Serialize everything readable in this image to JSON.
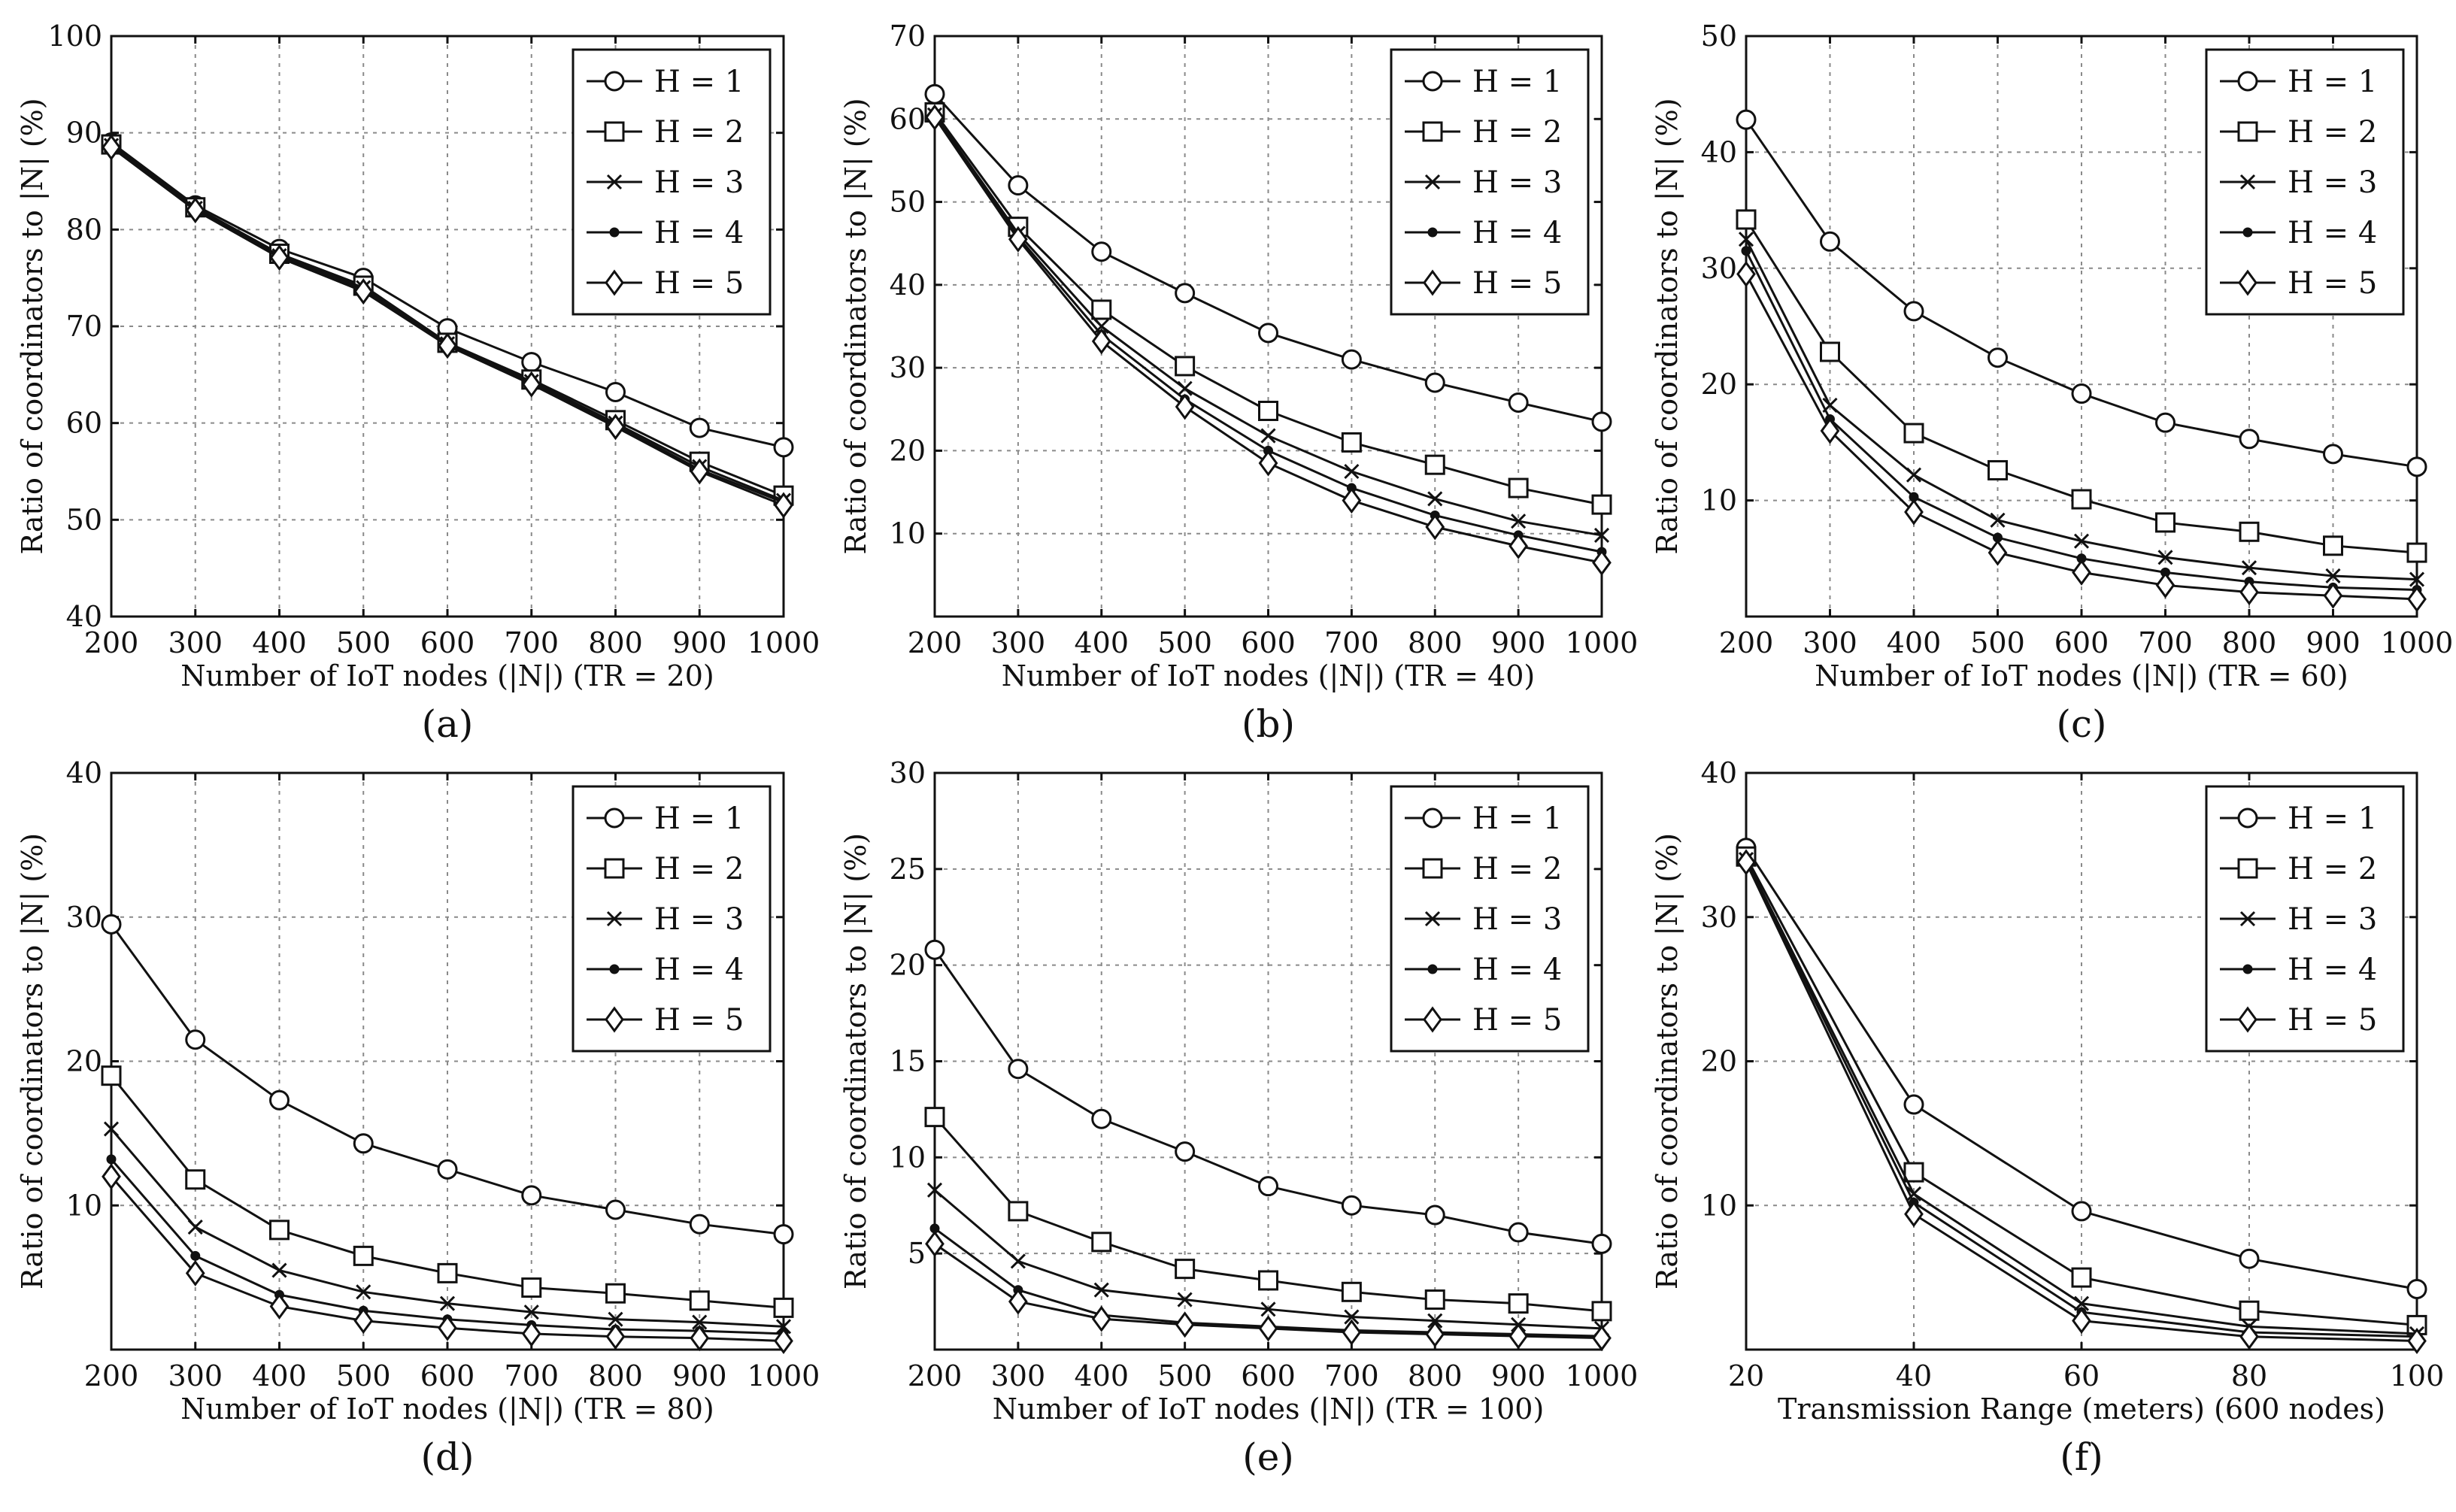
{
  "chart_data": [
    {
      "type": "line",
      "panel_label": "(a)",
      "xlabel": "Number of IoT nodes (|N|) (TR = 20)",
      "ylabel": "Ratio of coordinators to |N| (%)",
      "x": [
        200,
        300,
        400,
        500,
        600,
        700,
        800,
        900,
        1000
      ],
      "xticks": [
        200,
        300,
        400,
        500,
        600,
        700,
        800,
        900,
        1000
      ],
      "xlim": [
        200,
        1000
      ],
      "ylim": [
        40,
        100
      ],
      "yticks": [
        40,
        50,
        60,
        70,
        80,
        90,
        100
      ],
      "grid": true,
      "legend_position": "top-right",
      "series": [
        {
          "name": "H = 1",
          "marker": "circle",
          "values": [
            89.0,
            82.5,
            78.0,
            75.0,
            69.8,
            66.3,
            63.2,
            59.5,
            57.5
          ]
        },
        {
          "name": "H = 2",
          "marker": "square",
          "values": [
            88.8,
            82.3,
            77.5,
            74.2,
            68.3,
            64.5,
            60.3,
            56.0,
            52.5
          ]
        },
        {
          "name": "H = 3",
          "marker": "x",
          "values": [
            88.7,
            82.2,
            77.3,
            74.0,
            68.2,
            64.3,
            60.0,
            55.5,
            52.0
          ]
        },
        {
          "name": "H = 4",
          "marker": "dot",
          "values": [
            88.6,
            82.1,
            77.2,
            73.8,
            68.1,
            64.2,
            59.8,
            55.2,
            51.8
          ]
        },
        {
          "name": "H = 5",
          "marker": "diamond",
          "values": [
            88.5,
            82.0,
            77.1,
            73.6,
            68.0,
            64.0,
            59.6,
            55.0,
            51.5
          ]
        }
      ]
    },
    {
      "type": "line",
      "panel_label": "(b)",
      "xlabel": "Number of IoT nodes (|N|) (TR = 40)",
      "ylabel": "Ratio of coordinators to |N| (%)",
      "x": [
        200,
        300,
        400,
        500,
        600,
        700,
        800,
        900,
        1000
      ],
      "xticks": [
        200,
        300,
        400,
        500,
        600,
        700,
        800,
        900,
        1000
      ],
      "xlim": [
        200,
        1000
      ],
      "ylim": [
        0,
        70
      ],
      "yticks": [
        10,
        20,
        30,
        40,
        50,
        60,
        70
      ],
      "grid": true,
      "legend_position": "top-right",
      "series": [
        {
          "name": "H = 1",
          "marker": "circle",
          "values": [
            63.0,
            52.0,
            44.0,
            39.0,
            34.2,
            31.0,
            28.2,
            25.8,
            23.5
          ]
        },
        {
          "name": "H = 2",
          "marker": "square",
          "values": [
            60.8,
            47.0,
            37.0,
            30.2,
            24.8,
            21.0,
            18.3,
            15.5,
            13.5
          ]
        },
        {
          "name": "H = 3",
          "marker": "x",
          "values": [
            60.5,
            46.2,
            35.0,
            27.5,
            21.8,
            17.5,
            14.2,
            11.5,
            9.8
          ]
        },
        {
          "name": "H = 4",
          "marker": "dot",
          "values": [
            60.3,
            45.8,
            34.0,
            26.2,
            20.0,
            15.5,
            12.2,
            9.8,
            7.8
          ]
        },
        {
          "name": "H = 5",
          "marker": "diamond",
          "values": [
            60.2,
            45.5,
            33.2,
            25.3,
            18.5,
            14.0,
            10.8,
            8.5,
            6.5
          ]
        }
      ]
    },
    {
      "type": "line",
      "panel_label": "(c)",
      "xlabel": "Number of IoT nodes (|N|) (TR = 60)",
      "ylabel": "Ratio of coordinators to |N| (%)",
      "x": [
        200,
        300,
        400,
        500,
        600,
        700,
        800,
        900,
        1000
      ],
      "xticks": [
        200,
        300,
        400,
        500,
        600,
        700,
        800,
        900,
        1000
      ],
      "xlim": [
        200,
        1000
      ],
      "ylim": [
        0,
        50
      ],
      "yticks": [
        10,
        20,
        30,
        40,
        50
      ],
      "grid": true,
      "legend_position": "top-right",
      "series": [
        {
          "name": "H = 1",
          "marker": "circle",
          "values": [
            42.8,
            32.3,
            26.3,
            22.3,
            19.2,
            16.7,
            15.3,
            14.0,
            12.9
          ]
        },
        {
          "name": "H = 2",
          "marker": "square",
          "values": [
            34.2,
            22.8,
            15.8,
            12.6,
            10.1,
            8.1,
            7.3,
            6.1,
            5.5
          ]
        },
        {
          "name": "H = 3",
          "marker": "x",
          "values": [
            32.5,
            18.2,
            12.2,
            8.3,
            6.5,
            5.1,
            4.2,
            3.5,
            3.2
          ]
        },
        {
          "name": "H = 4",
          "marker": "dot",
          "values": [
            31.5,
            17.0,
            10.3,
            6.8,
            5.0,
            3.8,
            3.0,
            2.5,
            2.3
          ]
        },
        {
          "name": "H = 5",
          "marker": "diamond",
          "values": [
            29.5,
            16.0,
            9.0,
            5.5,
            3.8,
            2.7,
            2.1,
            1.8,
            1.5
          ]
        }
      ]
    },
    {
      "type": "line",
      "panel_label": "(d)",
      "xlabel": "Number of IoT nodes (|N|) (TR = 80)",
      "ylabel": "Ratio of coordinators to |N| (%)",
      "x": [
        200,
        300,
        400,
        500,
        600,
        700,
        800,
        900,
        1000
      ],
      "xticks": [
        200,
        300,
        400,
        500,
        600,
        700,
        800,
        900,
        1000
      ],
      "xlim": [
        200,
        1000
      ],
      "ylim": [
        0,
        40
      ],
      "yticks": [
        10,
        20,
        30,
        40
      ],
      "grid": true,
      "legend_position": "top-right",
      "series": [
        {
          "name": "H = 1",
          "marker": "circle",
          "values": [
            29.5,
            21.5,
            17.3,
            14.3,
            12.5,
            10.7,
            9.7,
            8.7,
            8.0
          ]
        },
        {
          "name": "H = 2",
          "marker": "square",
          "values": [
            19.0,
            11.8,
            8.3,
            6.5,
            5.3,
            4.3,
            3.9,
            3.4,
            2.9
          ]
        },
        {
          "name": "H = 3",
          "marker": "x",
          "values": [
            15.3,
            8.5,
            5.5,
            4.0,
            3.2,
            2.6,
            2.1,
            1.9,
            1.6
          ]
        },
        {
          "name": "H = 4",
          "marker": "dot",
          "values": [
            13.2,
            6.5,
            3.8,
            2.7,
            2.1,
            1.7,
            1.4,
            1.3,
            1.1
          ]
        },
        {
          "name": "H = 5",
          "marker": "diamond",
          "values": [
            12.0,
            5.3,
            3.0,
            2.0,
            1.5,
            1.1,
            0.9,
            0.8,
            0.6
          ]
        }
      ]
    },
    {
      "type": "line",
      "panel_label": "(e)",
      "xlabel": "Number of IoT nodes (|N|) (TR = 100)",
      "ylabel": "Ratio of coordinators to |N| (%)",
      "x": [
        200,
        300,
        400,
        500,
        600,
        700,
        800,
        900,
        1000
      ],
      "xticks": [
        200,
        300,
        400,
        500,
        600,
        700,
        800,
        900,
        1000
      ],
      "xlim": [
        200,
        1000
      ],
      "ylim": [
        0,
        30
      ],
      "yticks": [
        5,
        10,
        15,
        20,
        25,
        30
      ],
      "grid": true,
      "legend_position": "top-right",
      "series": [
        {
          "name": "H = 1",
          "marker": "circle",
          "values": [
            20.8,
            14.6,
            12.0,
            10.3,
            8.5,
            7.5,
            7.0,
            6.1,
            5.5
          ]
        },
        {
          "name": "H = 2",
          "marker": "square",
          "values": [
            12.1,
            7.2,
            5.6,
            4.2,
            3.6,
            3.0,
            2.6,
            2.4,
            2.0
          ]
        },
        {
          "name": "H = 3",
          "marker": "x",
          "values": [
            8.3,
            4.6,
            3.1,
            2.6,
            2.1,
            1.7,
            1.5,
            1.3,
            1.1
          ]
        },
        {
          "name": "H = 4",
          "marker": "dot",
          "values": [
            6.3,
            3.1,
            1.8,
            1.4,
            1.2,
            1.0,
            0.9,
            0.8,
            0.7
          ]
        },
        {
          "name": "H = 5",
          "marker": "diamond",
          "values": [
            5.5,
            2.5,
            1.6,
            1.3,
            1.1,
            0.9,
            0.8,
            0.7,
            0.6
          ]
        }
      ]
    },
    {
      "type": "line",
      "panel_label": "(f)",
      "xlabel": "Transmission Range (meters) (600 nodes)",
      "ylabel": "Ratio of coordinators to |N| (%)",
      "x": [
        20,
        40,
        60,
        80,
        100
      ],
      "xticks": [
        20,
        40,
        60,
        80,
        100
      ],
      "xlim": [
        20,
        100
      ],
      "ylim": [
        0,
        40
      ],
      "yticks": [
        10,
        20,
        30,
        40
      ],
      "grid": true,
      "legend_position": "top-right",
      "series": [
        {
          "name": "H = 1",
          "marker": "circle",
          "values": [
            34.8,
            17.0,
            9.6,
            6.3,
            4.2
          ]
        },
        {
          "name": "H = 2",
          "marker": "square",
          "values": [
            34.2,
            12.3,
            5.0,
            2.7,
            1.7
          ]
        },
        {
          "name": "H = 3",
          "marker": "x",
          "values": [
            34.0,
            10.8,
            3.2,
            1.6,
            1.1
          ]
        },
        {
          "name": "H = 4",
          "marker": "dot",
          "values": [
            33.9,
            10.2,
            2.6,
            1.2,
            0.9
          ]
        },
        {
          "name": "H = 5",
          "marker": "diamond",
          "values": [
            33.8,
            9.4,
            2.0,
            0.9,
            0.6
          ]
        }
      ]
    }
  ]
}
